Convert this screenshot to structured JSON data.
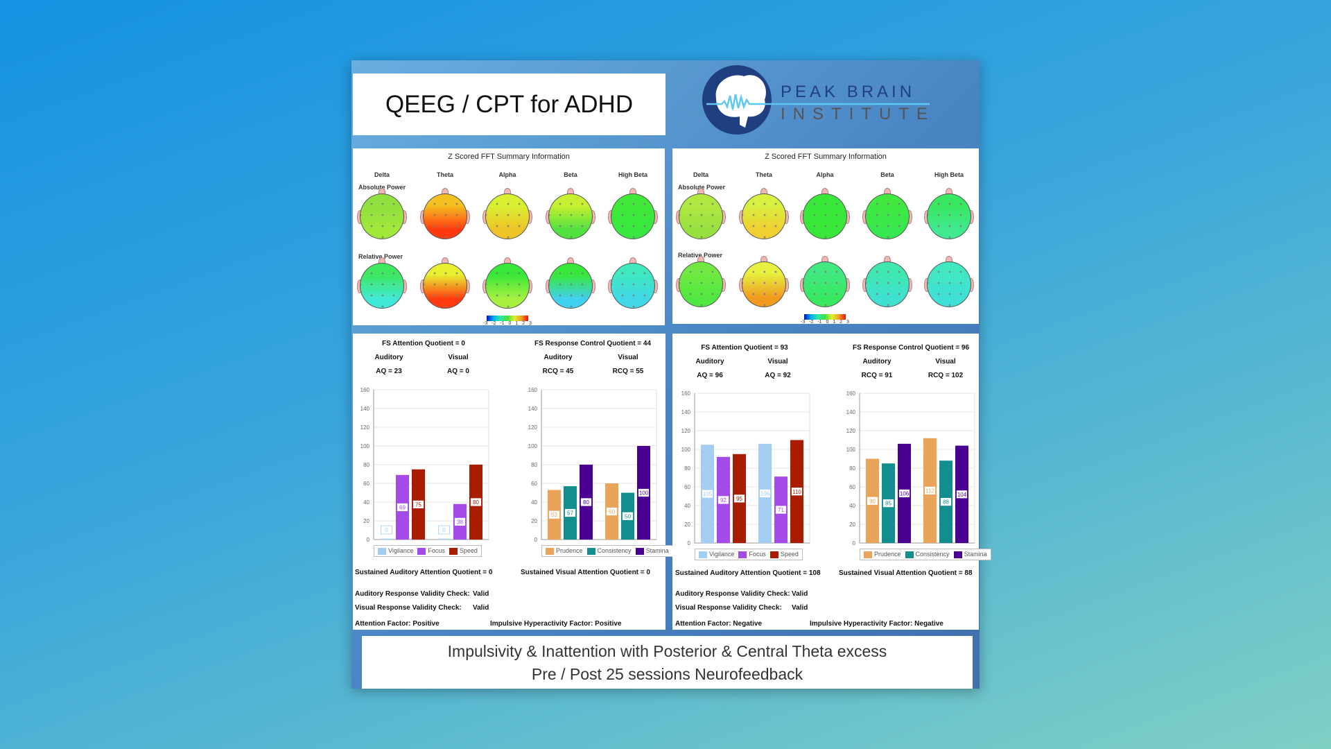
{
  "header": {
    "title": "QEEG / CPT for ADHD",
    "logo": {
      "line1": "PEAK BRAIN",
      "line2": "INSTITUTE",
      "circle_color": "#1f3f80",
      "wave_color": "#5ec8f2"
    }
  },
  "qeeg": {
    "title": "Z Scored FFT Summary Information",
    "bands": [
      "Delta",
      "Theta",
      "Alpha",
      "Beta",
      "High Beta"
    ],
    "rows": [
      "Absolute Power",
      "Relative Power"
    ],
    "colorbar_ticks": [
      "-3",
      "-2",
      "-1",
      "0",
      "1",
      "2",
      "3"
    ],
    "pre_maps": {
      "absolute": [
        [
          "#90e040",
          "#a0e83a"
        ],
        [
          "#f4c020",
          "#ff3a10"
        ],
        [
          "#d8f030",
          "#f0c428"
        ],
        [
          "#c8f030",
          "#50e040"
        ],
        [
          "#40e838",
          "#38e840"
        ]
      ],
      "relative": [
        [
          "#40e860",
          "#40e8d8"
        ],
        [
          "#e8f030",
          "#ff3a10"
        ],
        [
          "#38e838",
          "#a8f040"
        ],
        [
          "#38e838",
          "#40d0f0"
        ],
        [
          "#40e8c0",
          "#40d8e8"
        ]
      ]
    },
    "post_maps": {
      "absolute": [
        [
          "#b0e840",
          "#98e040"
        ],
        [
          "#d8f040",
          "#f0d030"
        ],
        [
          "#38e838",
          "#38e838"
        ],
        [
          "#40e840",
          "#38e850"
        ],
        [
          "#38e860",
          "#40e890"
        ]
      ],
      "relative": [
        [
          "#70e840",
          "#50e840"
        ],
        [
          "#e8f040",
          "#f09a20"
        ],
        [
          "#40e880",
          "#38e860"
        ],
        [
          "#40e8b0",
          "#40e0d0"
        ],
        [
          "#40e8c0",
          "#40e0d8"
        ]
      ]
    }
  },
  "pre": {
    "attention_quotient": "FS Attention Quotient = 0",
    "response_quotient": "FS Response Control Quotient = 44",
    "auditory": "Auditory",
    "visual": "Visual",
    "aq_auditory": "AQ = 23",
    "aq_visual": "AQ = 0",
    "rcq_auditory": "RCQ = 45",
    "rcq_visual": "RCQ = 55",
    "sustained_auditory": "Sustained Auditory Attention Quotient = 0",
    "sustained_visual": "Sustained Visual Attention Quotient = 0",
    "auditory_validity": "Auditory Response Validity Check:",
    "auditory_validity_value": "Valid",
    "visual_validity": "Visual Response Validity Check:",
    "visual_validity_value": "Valid",
    "attention_factor": "Attention Factor:  Positive",
    "hyperactivity_factor": "Impulsive Hyperactivity Factor: Positive"
  },
  "post": {
    "attention_quotient": "FS Attention Quotient = 93",
    "response_quotient": "FS Response Control Quotient = 96",
    "auditory": "Auditory",
    "visual": "Visual",
    "aq_auditory": "AQ = 96",
    "aq_visual": "AQ = 92",
    "rcq_auditory": "RCQ = 91",
    "rcq_visual": "RCQ = 102",
    "sustained_auditory": "Sustained Auditory Attention Quotient = 108",
    "sustained_visual": "Sustained Visual Attention Quotient = 88",
    "auditory_validity": "Auditory Response Validity Check:",
    "auditory_validity_value": "Valid",
    "visual_validity": "Visual Response Validity Check:",
    "visual_validity_value": "Valid",
    "attention_factor": "Attention Factor:  Negative",
    "hyperactivity_factor": "Impulsive Hyperactivity Factor: Negative"
  },
  "chart_data": [
    {
      "type": "bar",
      "categories": [
        "Auditory",
        "Visual"
      ],
      "ylim": [
        0,
        160
      ],
      "yticks": [
        0,
        20,
        40,
        60,
        80,
        100,
        120,
        140,
        160
      ],
      "grid": true,
      "legend": "bottom",
      "series": [
        {
          "name": "Vigilance",
          "color": "#a4cdf2",
          "values": [
            0,
            0
          ]
        },
        {
          "name": "Focus",
          "color": "#a44ae8",
          "values": [
            69,
            38
          ]
        },
        {
          "name": "Speed",
          "color": "#a81c00",
          "values": [
            75,
            80
          ]
        }
      ]
    },
    {
      "type": "bar",
      "categories": [
        "Auditory",
        "Visual"
      ],
      "ylim": [
        0,
        160
      ],
      "yticks": [
        0,
        20,
        40,
        60,
        80,
        100,
        120,
        140,
        160
      ],
      "grid": true,
      "legend": "bottom",
      "series": [
        {
          "name": "Prudence",
          "color": "#eaa45a",
          "values": [
            53,
            60
          ]
        },
        {
          "name": "Consistency",
          "color": "#128e8e",
          "values": [
            57,
            50
          ]
        },
        {
          "name": "Stamina",
          "color": "#4a0090",
          "values": [
            80,
            100
          ]
        }
      ]
    },
    {
      "type": "bar",
      "categories": [
        "Auditory",
        "Visual"
      ],
      "ylim": [
        0,
        160
      ],
      "yticks": [
        0,
        20,
        40,
        60,
        80,
        100,
        120,
        140,
        160
      ],
      "grid": true,
      "legend": "bottom",
      "series": [
        {
          "name": "Vigilance",
          "color": "#a4cdf2",
          "values": [
            105,
            106
          ]
        },
        {
          "name": "Focus",
          "color": "#a44ae8",
          "values": [
            92,
            71
          ]
        },
        {
          "name": "Speed",
          "color": "#a81c00",
          "values": [
            95,
            110
          ]
        }
      ]
    },
    {
      "type": "bar",
      "categories": [
        "Auditory",
        "Visual"
      ],
      "ylim": [
        0,
        160
      ],
      "yticks": [
        0,
        20,
        40,
        60,
        80,
        100,
        120,
        140,
        160
      ],
      "grid": true,
      "legend": "bottom",
      "series": [
        {
          "name": "Prudence",
          "color": "#eaa45a",
          "values": [
            90,
            112
          ]
        },
        {
          "name": "Consistency",
          "color": "#128e8e",
          "values": [
            85,
            88
          ]
        },
        {
          "name": "Stamina",
          "color": "#4a0090",
          "values": [
            106,
            104
          ]
        }
      ]
    }
  ],
  "caption": {
    "line1": "Impulsivity & Inattention with Posterior & Central Theta excess",
    "line2": "Pre / Post 25 sessions Neurofeedback"
  }
}
